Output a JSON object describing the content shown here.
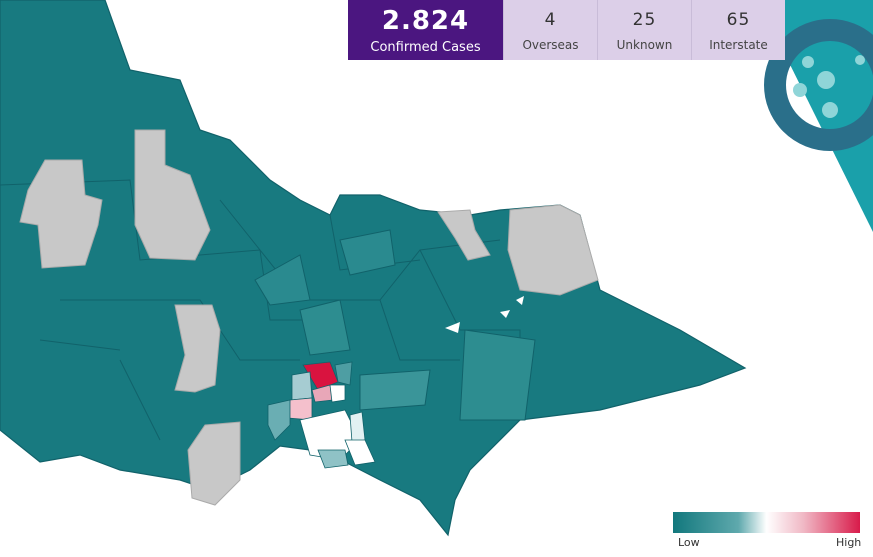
{
  "stats": {
    "confirmed": {
      "value": "2.824",
      "label": "Confirmed Cases"
    },
    "items": [
      {
        "value": "4",
        "label": "Overseas"
      },
      {
        "value": "25",
        "label": "Unknown"
      },
      {
        "value": "65",
        "label": "Interstate"
      }
    ]
  },
  "legend": {
    "low": "Low",
    "high": "High"
  }
}
